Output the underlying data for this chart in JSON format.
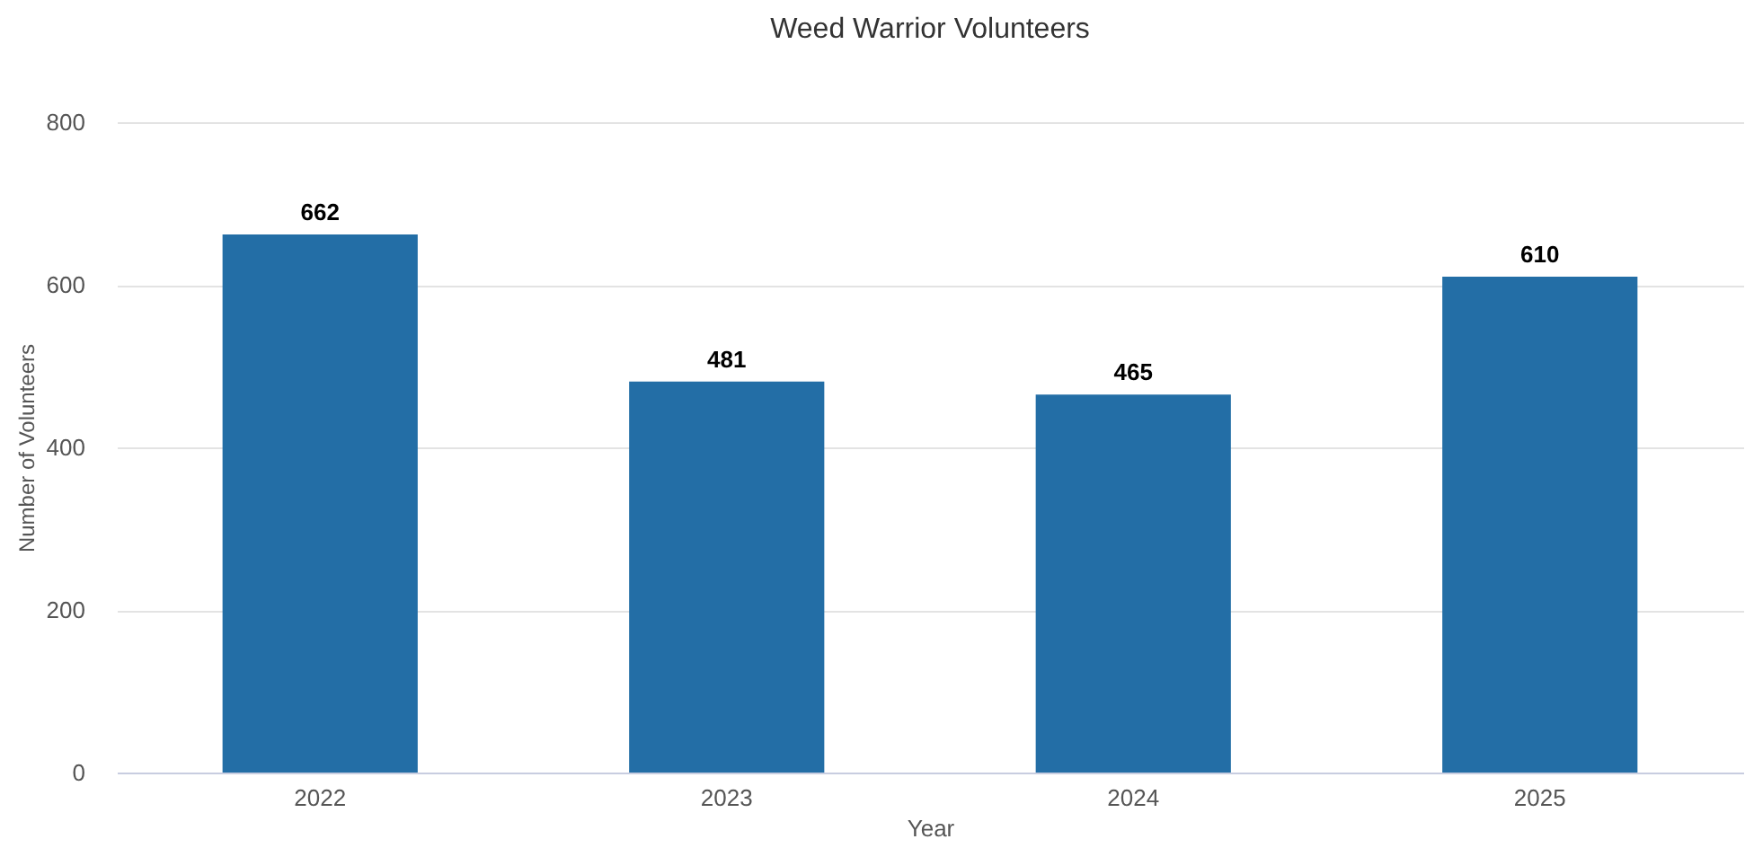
{
  "chart_data": {
    "type": "bar",
    "title": "Weed Warrior Volunteers",
    "xlabel": "Year",
    "ylabel": "Number of Volunteers",
    "categories": [
      "2022",
      "2023",
      "2024",
      "2025"
    ],
    "values": [
      662,
      481,
      465,
      610
    ],
    "color": "#236ea6",
    "ylim": [
      0,
      800
    ],
    "yticks": [
      0,
      200,
      400,
      600,
      800
    ],
    "grid": "y",
    "data_labels": true
  }
}
